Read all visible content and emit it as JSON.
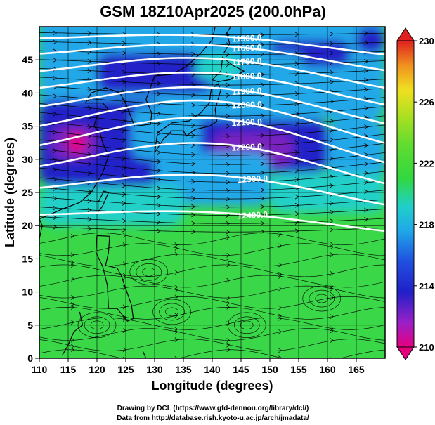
{
  "title": "GSM 18Z10Apr2025 (200.0hPa)",
  "x_axis": {
    "label": "Longitude (degrees)",
    "ticks": [
      "110",
      "115",
      "120",
      "125",
      "130",
      "135",
      "140",
      "145",
      "150",
      "155",
      "160",
      "165"
    ]
  },
  "y_axis": {
    "label": "Latitude  (degrees)",
    "ticks": [
      "0",
      "5",
      "10",
      "15",
      "20",
      "25",
      "30",
      "35",
      "40",
      "45"
    ]
  },
  "colorbar": {
    "ticks": [
      "210",
      "214",
      "218",
      "222",
      "226",
      "230"
    ],
    "colors": {
      "magenta": "#e6007e",
      "purple": "#7a20c0",
      "blue": "#2020c8",
      "light_blue": "#20a8e8",
      "cyan": "#20d0c8",
      "green": "#30d840",
      "yellow_green": "#b0e020",
      "yellow": "#f0e020",
      "orange": "#f09020",
      "red": "#e02020"
    }
  },
  "contour_labels": [
    "11500.0",
    "11600.0",
    "11700.0",
    "11800.0",
    "11900.0",
    "12000.0",
    "12100.0",
    "12200.0",
    "12300.0",
    "12400.0"
  ],
  "credits": {
    "line1": "Drawing by DCL (https://www.gfd-dennou.org/library/dcl/)",
    "line2": "Data from http://database.rish.kyoto-u.ac.jp/arch/jmadata/"
  },
  "chart_data": {
    "type": "heatmap",
    "variable": "temperature with geopotential height contours and wind streamlines",
    "xlim": [
      110,
      170
    ],
    "ylim": [
      0,
      50
    ],
    "color_range": [
      210,
      230
    ],
    "contour_levels": [
      11500,
      11600,
      11700,
      11800,
      11900,
      12000,
      12100,
      12200,
      12300,
      12400
    ],
    "contour_label_lon": [
      146,
      146,
      146,
      146,
      146,
      146,
      146,
      146,
      147,
      147
    ]
  }
}
